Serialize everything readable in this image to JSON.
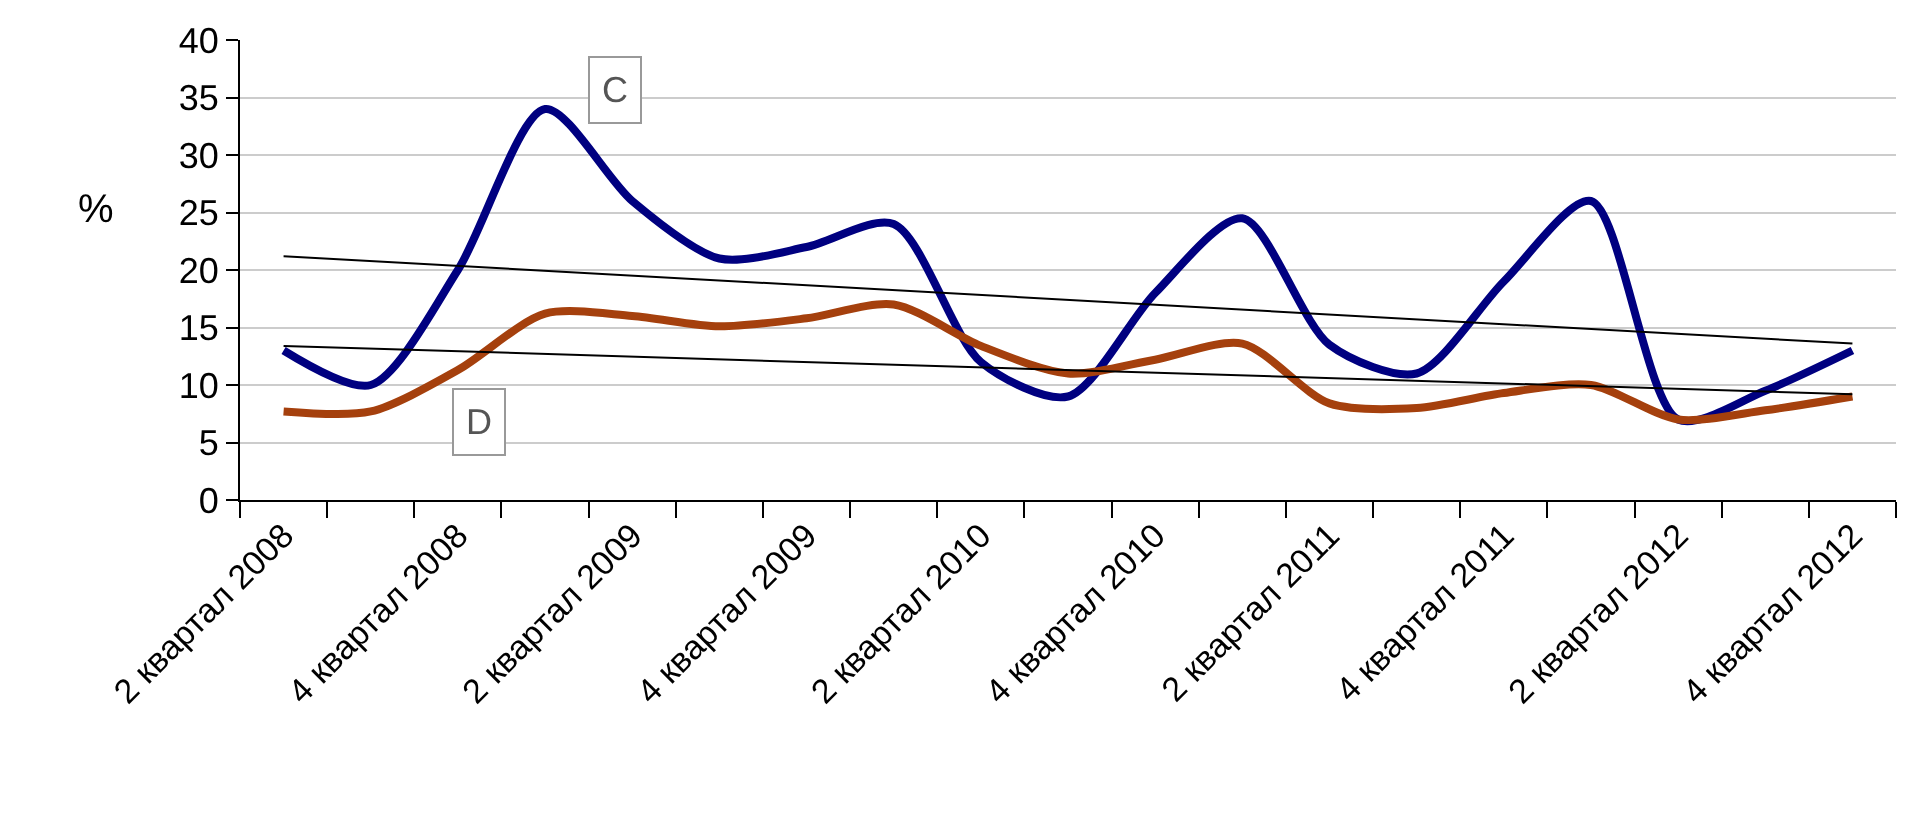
{
  "chart_data": {
    "type": "line",
    "ylabel": "%",
    "categories": [
      "2 квартал 2008",
      null,
      "4 квартал 2008",
      null,
      "2 квартал 2009",
      null,
      "4 квартал 2009",
      null,
      "2 квартал 2010",
      null,
      "4 квартал 2010",
      null,
      "2 квартал 2011",
      null,
      "4 квартал 2011",
      null,
      "2 квартал 2012",
      null,
      "4 квартал 2012"
    ],
    "series": [
      {
        "name": "C",
        "color": "#000080",
        "values": [
          13,
          10,
          20,
          34,
          26,
          21,
          22,
          24,
          12,
          9,
          18,
          24.5,
          13.5,
          11,
          19,
          26,
          7,
          9.5,
          13
        ]
      },
      {
        "name": "D",
        "color": "#a5400d",
        "values": [
          7.7,
          7.7,
          11.3,
          16.2,
          16,
          15.1,
          15.8,
          17,
          13.4,
          11,
          12.2,
          13.6,
          8.4,
          8,
          9.3,
          10,
          7,
          7.8,
          9
        ]
      },
      {
        "color": "#000000",
        "values": [
          21.2,
          null,
          null,
          null,
          null,
          null,
          null,
          null,
          null,
          null,
          null,
          null,
          null,
          null,
          null,
          null,
          null,
          null,
          13.6
        ]
      },
      {
        "color": "#000000",
        "values": [
          13.4,
          null,
          null,
          null,
          null,
          null,
          null,
          null,
          null,
          null,
          null,
          null,
          null,
          null,
          null,
          null,
          null,
          null,
          9.2
        ]
      }
    ],
    "ylim": [
      0,
      40
    ],
    "yticks": [
      0,
      5,
      10,
      15,
      20,
      25,
      30,
      35,
      40
    ],
    "grid": "y",
    "legend": false,
    "marker": "none",
    "line_style": "solid"
  }
}
